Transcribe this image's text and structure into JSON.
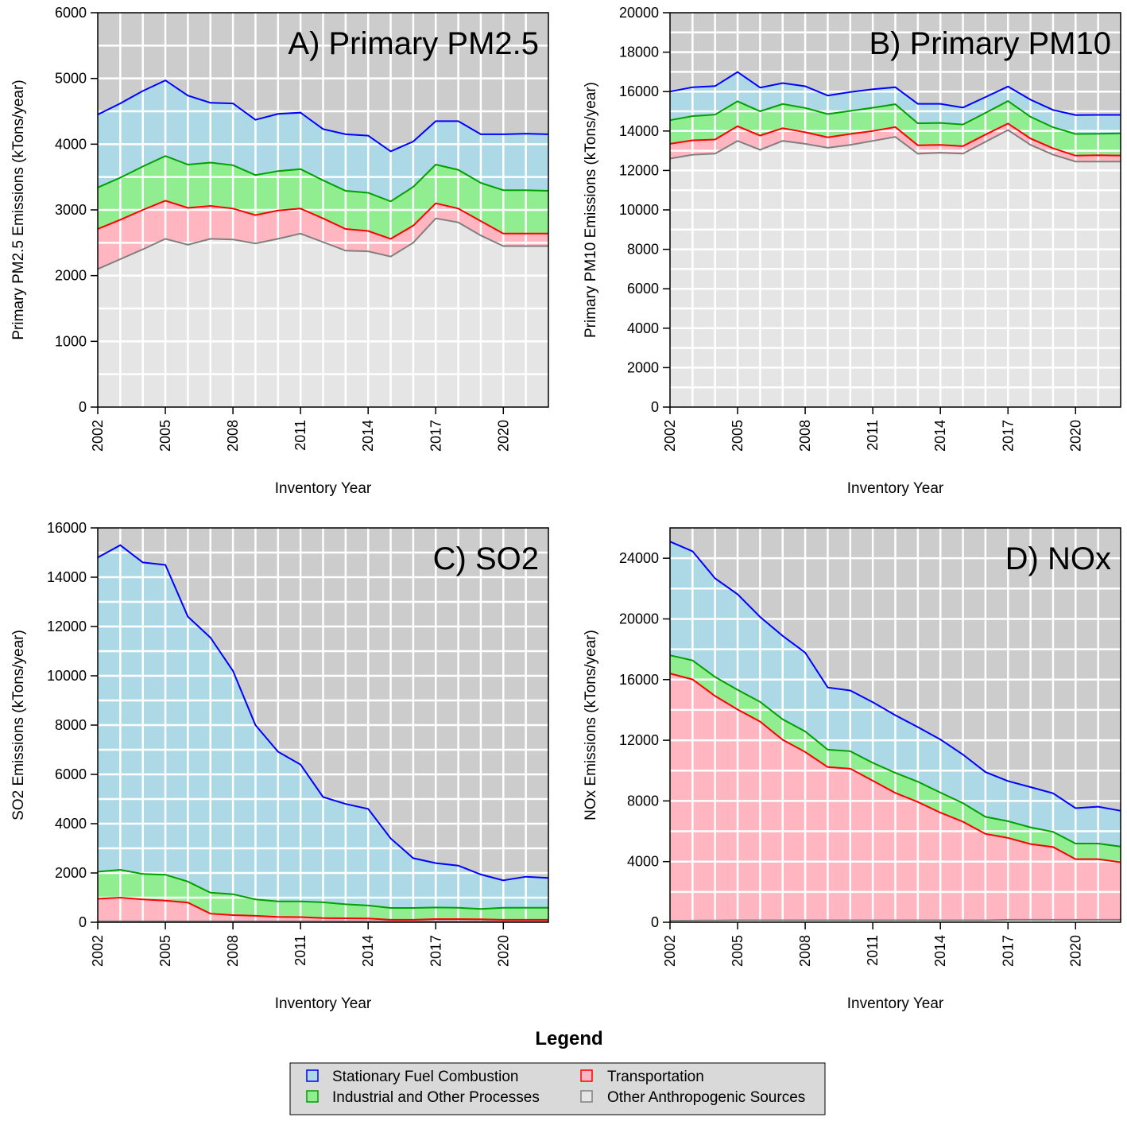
{
  "legend": {
    "title": "Legend",
    "items": [
      {
        "label": "Stationary Fuel Combustion",
        "color": "#0000ff"
      },
      {
        "label": "Transportation",
        "color": "#ff0000"
      },
      {
        "label": "Industrial and Other Processes",
        "color": "#00a000"
      },
      {
        "label": "Other Anthropogenic Sources",
        "color": "#808080"
      }
    ]
  },
  "colors": {
    "panel_bg": "#cccccc",
    "grid": "#ffffff",
    "other_fill": "#e5e5e5",
    "other_line": "#808080",
    "transport_fill": "#ffb6c1",
    "transport_line": "#ff0000",
    "industrial_fill": "#90ee90",
    "industrial_line": "#00a000",
    "stationary_fill": "#add8e6",
    "stationary_line": "#0000ff"
  },
  "chart_data": [
    {
      "type": "area",
      "stacked": true,
      "title": "A) Primary PM2.5",
      "xlabel": "Inventory Year",
      "ylabel": "Primary PM2.5 Emissions (kTons/year)",
      "xlim": [
        2002,
        2022
      ],
      "ylim": [
        0,
        6000
      ],
      "yticks": [
        0,
        1000,
        2000,
        3000,
        4000,
        5000,
        6000
      ],
      "xticks": [
        2002,
        2005,
        2008,
        2011,
        2014,
        2017,
        2020
      ],
      "grid": true,
      "x": [
        2002,
        2003,
        2004,
        2005,
        2006,
        2007,
        2008,
        2009,
        2010,
        2011,
        2012,
        2013,
        2014,
        2015,
        2016,
        2017,
        2018,
        2019,
        2020,
        2021,
        2022
      ],
      "series": [
        {
          "name": "Other Anthropogenic Sources",
          "values": [
            2100,
            2250,
            2400,
            2560,
            2470,
            2560,
            2550,
            2490,
            2560,
            2640,
            2510,
            2380,
            2370,
            2290,
            2500,
            2870,
            2810,
            2610,
            2450,
            2450,
            2450
          ]
        },
        {
          "name": "Transportation",
          "values": [
            610,
            600,
            600,
            580,
            560,
            500,
            470,
            430,
            430,
            380,
            360,
            330,
            310,
            270,
            260,
            230,
            210,
            220,
            190,
            190,
            190
          ]
        },
        {
          "name": "Industrial and Other Processes",
          "values": [
            630,
            640,
            660,
            680,
            660,
            660,
            660,
            610,
            600,
            600,
            580,
            580,
            580,
            570,
            590,
            590,
            590,
            580,
            660,
            660,
            650
          ]
        },
        {
          "name": "Stationary Fuel Combustion",
          "values": [
            1110,
            1130,
            1150,
            1150,
            1050,
            910,
            940,
            840,
            870,
            860,
            780,
            860,
            870,
            760,
            690,
            660,
            740,
            740,
            850,
            860,
            860
          ]
        }
      ]
    },
    {
      "type": "area",
      "stacked": true,
      "title": "B) Primary PM10",
      "xlabel": "Inventory Year",
      "ylabel": "Primary PM10 Emissions (kTons/year)",
      "xlim": [
        2002,
        2022
      ],
      "ylim": [
        0,
        20000
      ],
      "yticks": [
        0,
        2000,
        4000,
        6000,
        8000,
        10000,
        12000,
        14000,
        16000,
        18000,
        20000
      ],
      "xticks": [
        2002,
        2005,
        2008,
        2011,
        2014,
        2017,
        2020
      ],
      "grid": true,
      "x": [
        2002,
        2003,
        2004,
        2005,
        2006,
        2007,
        2008,
        2009,
        2010,
        2011,
        2012,
        2013,
        2014,
        2015,
        2016,
        2017,
        2018,
        2019,
        2020,
        2021,
        2022
      ],
      "series": [
        {
          "name": "Other Anthropogenic Sources",
          "values": [
            12600,
            12800,
            12850,
            13500,
            13050,
            13500,
            13350,
            13150,
            13300,
            13500,
            13700,
            12850,
            12900,
            12850,
            13450,
            14050,
            13300,
            12800,
            12450,
            12450,
            12450
          ]
        },
        {
          "name": "Transportation",
          "values": [
            750,
            730,
            720,
            740,
            720,
            640,
            590,
            530,
            550,
            500,
            500,
            430,
            400,
            380,
            370,
            330,
            320,
            320,
            300,
            320,
            310
          ]
        },
        {
          "name": "Industrial and Other Processes",
          "values": [
            1200,
            1230,
            1260,
            1270,
            1230,
            1230,
            1230,
            1180,
            1170,
            1180,
            1160,
            1110,
            1110,
            1100,
            1100,
            1140,
            1100,
            1070,
            1100,
            1090,
            1120
          ]
        },
        {
          "name": "Stationary Fuel Combustion",
          "values": [
            1450,
            1460,
            1450,
            1480,
            1200,
            1060,
            1100,
            940,
            960,
            940,
            860,
            990,
            970,
            860,
            800,
            740,
            870,
            880,
            960,
            960,
            940
          ]
        }
      ]
    },
    {
      "type": "area",
      "stacked": true,
      "title": "C) SO2",
      "xlabel": "Inventory Year",
      "ylabel": "SO2 Emissions (kTons/year)",
      "xlim": [
        2002,
        2022
      ],
      "ylim": [
        0,
        16000
      ],
      "yticks": [
        0,
        2000,
        4000,
        6000,
        8000,
        10000,
        12000,
        14000,
        16000
      ],
      "xticks": [
        2002,
        2005,
        2008,
        2011,
        2014,
        2017,
        2020
      ],
      "grid": true,
      "x": [
        2002,
        2003,
        2004,
        2005,
        2006,
        2007,
        2008,
        2009,
        2010,
        2011,
        2012,
        2013,
        2014,
        2015,
        2016,
        2017,
        2018,
        2019,
        2020,
        2021,
        2022
      ],
      "series": [
        {
          "name": "Other Anthropogenic Sources",
          "values": [
            40,
            40,
            40,
            40,
            40,
            40,
            40,
            40,
            40,
            40,
            40,
            40,
            40,
            40,
            40,
            40,
            40,
            40,
            40,
            40,
            40
          ]
        },
        {
          "name": "Transportation",
          "values": [
            910,
            960,
            890,
            840,
            760,
            310,
            250,
            220,
            180,
            170,
            130,
            120,
            110,
            60,
            60,
            90,
            90,
            80,
            60,
            60,
            60
          ]
        },
        {
          "name": "Industrial and Other Processes",
          "values": [
            1100,
            1130,
            1030,
            1050,
            850,
            850,
            850,
            670,
            630,
            640,
            640,
            570,
            530,
            480,
            480,
            470,
            460,
            420,
            490,
            490,
            490
          ]
        },
        {
          "name": "Stationary Fuel Combustion",
          "values": [
            12750,
            13170,
            12640,
            12570,
            10750,
            10350,
            9060,
            7070,
            6070,
            5550,
            4270,
            4070,
            3920,
            2820,
            2020,
            1800,
            1710,
            1400,
            1110,
            1260,
            1210
          ]
        }
      ]
    },
    {
      "type": "area",
      "stacked": true,
      "title": "D) NOx",
      "xlabel": "Inventory Year",
      "ylabel": "NOx Emissions (kTons/year)",
      "xlim": [
        2002,
        2022
      ],
      "ylim": [
        0,
        26000
      ],
      "yticks": [
        0,
        4000,
        8000,
        12000,
        16000,
        20000,
        24000
      ],
      "xticks": [
        2002,
        2005,
        2008,
        2011,
        2014,
        2017,
        2020
      ],
      "grid": true,
      "x": [
        2002,
        2003,
        2004,
        2005,
        2006,
        2007,
        2008,
        2009,
        2010,
        2011,
        2012,
        2013,
        2014,
        2015,
        2016,
        2017,
        2018,
        2019,
        2020,
        2021,
        2022
      ],
      "series": [
        {
          "name": "Other Anthropogenic Sources",
          "values": [
            100,
            110,
            120,
            130,
            130,
            130,
            130,
            130,
            130,
            130,
            130,
            130,
            130,
            130,
            130,
            160,
            160,
            160,
            160,
            160,
            160
          ]
        },
        {
          "name": "Transportation",
          "values": [
            16300,
            15900,
            14800,
            13900,
            13100,
            11900,
            11100,
            10100,
            10000,
            9200,
            8400,
            7800,
            7100,
            6500,
            5700,
            5400,
            5000,
            4800,
            4000,
            4000,
            3800
          ]
        },
        {
          "name": "Industrial and Other Processes",
          "values": [
            1200,
            1250,
            1250,
            1300,
            1300,
            1350,
            1350,
            1150,
            1150,
            1180,
            1320,
            1340,
            1320,
            1230,
            1120,
            1100,
            1100,
            1000,
            1030,
            1030,
            1030
          ]
        },
        {
          "name": "Stationary Fuel Combustion",
          "values": [
            7500,
            7200,
            6500,
            6300,
            5600,
            5500,
            5200,
            4100,
            4000,
            4000,
            3800,
            3600,
            3500,
            3200,
            2950,
            2650,
            2650,
            2540,
            2330,
            2430,
            2360
          ]
        }
      ]
    }
  ]
}
